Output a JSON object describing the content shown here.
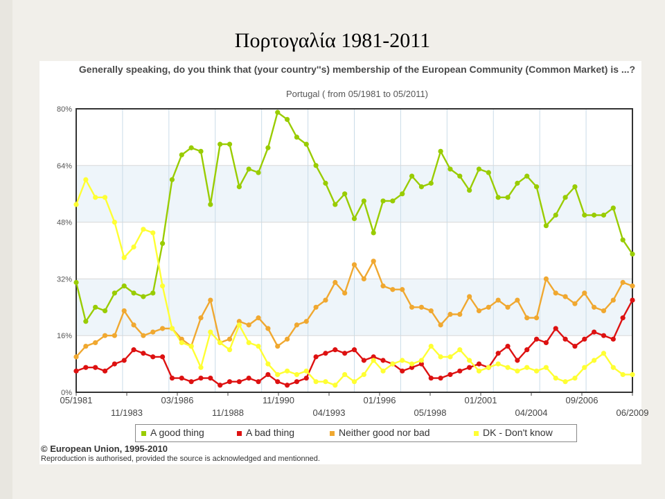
{
  "slide": {
    "title": "Πορτογαλία 1981-2011"
  },
  "chart_data": {
    "type": "line",
    "title": "Generally speaking, do you think that (your country''s) membership of the European Community (Common Market) is ...?",
    "subtitle": "Portugal ( from 05/1981 to 05/2011)",
    "xlabel": "",
    "ylabel": "",
    "ylim": [
      0,
      80
    ],
    "y_ticks": [
      "0%",
      "16%",
      "32%",
      "48%",
      "64%",
      "80%"
    ],
    "x_tick_labels_row1": [
      "05/1981",
      "03/1986",
      "11/1990",
      "01/1996",
      "01/2001",
      "09/2006"
    ],
    "x_tick_labels_row2": [
      "11/1983",
      "11/1988",
      "04/1993",
      "05/1998",
      "04/2004",
      "06/2009"
    ],
    "grid": true,
    "legend_position": "bottom",
    "series": [
      {
        "name": "A good thing",
        "color": "#99cc00",
        "values": [
          31,
          20,
          24,
          23,
          28,
          30,
          28,
          27,
          28,
          42,
          60,
          67,
          69,
          68,
          53,
          70,
          70,
          58,
          63,
          62,
          69,
          79,
          77,
          72,
          70,
          64,
          59,
          53,
          56,
          49,
          54,
          45,
          54,
          54,
          56,
          61,
          58,
          59,
          68,
          63,
          61,
          57,
          63,
          62,
          55,
          55,
          59,
          61,
          58,
          47,
          50,
          55,
          58,
          50,
          50,
          50,
          52,
          43,
          39
        ]
      },
      {
        "name": "A bad thing",
        "color": "#dd1111",
        "values": [
          6,
          7,
          7,
          6,
          8,
          9,
          12,
          11,
          10,
          10,
          4,
          4,
          3,
          4,
          4,
          2,
          3,
          3,
          4,
          3,
          5,
          3,
          2,
          3,
          4,
          10,
          11,
          12,
          11,
          12,
          9,
          10,
          9,
          8,
          6,
          7,
          8,
          4,
          4,
          5,
          6,
          7,
          8,
          7,
          11,
          13,
          9,
          12,
          15,
          14,
          18,
          15,
          13,
          15,
          17,
          16,
          15,
          21,
          26
        ]
      },
      {
        "name": "Neither good nor bad",
        "color": "#f0a830",
        "values": [
          10,
          13,
          14,
          16,
          16,
          23,
          19,
          16,
          17,
          18,
          18,
          15,
          13,
          21,
          26,
          14,
          15,
          20,
          19,
          21,
          18,
          13,
          15,
          19,
          20,
          24,
          26,
          31,
          28,
          36,
          32,
          37,
          30,
          29,
          29,
          24,
          24,
          23,
          19,
          22,
          22,
          27,
          23,
          24,
          26,
          24,
          26,
          21,
          21,
          32,
          28,
          27,
          25,
          28,
          24,
          23,
          26,
          31,
          30
        ]
      },
      {
        "name": "DK - Don't know",
        "color": "#ffff33",
        "values": [
          53,
          60,
          55,
          55,
          48,
          38,
          41,
          46,
          45,
          30,
          18,
          14,
          13,
          7,
          17,
          14,
          12,
          19,
          14,
          13,
          8,
          5,
          6,
          5,
          6,
          3,
          3,
          2,
          5,
          3,
          5,
          9,
          6,
          8,
          9,
          8,
          9,
          13,
          10,
          10,
          12,
          9,
          6,
          7,
          8,
          7,
          6,
          7,
          6,
          7,
          4,
          3,
          4,
          7,
          9,
          11,
          7,
          5,
          5
        ]
      }
    ]
  },
  "legend": {
    "good": "A good thing",
    "bad": "A bad thing",
    "neither": "Neither good nor bad",
    "dk": "DK - Don't know"
  },
  "footer": {
    "copyright": "© European Union, 1995-2010",
    "reproduction": "Reproduction is authorised, provided the source is acknowledged and mentionned."
  }
}
